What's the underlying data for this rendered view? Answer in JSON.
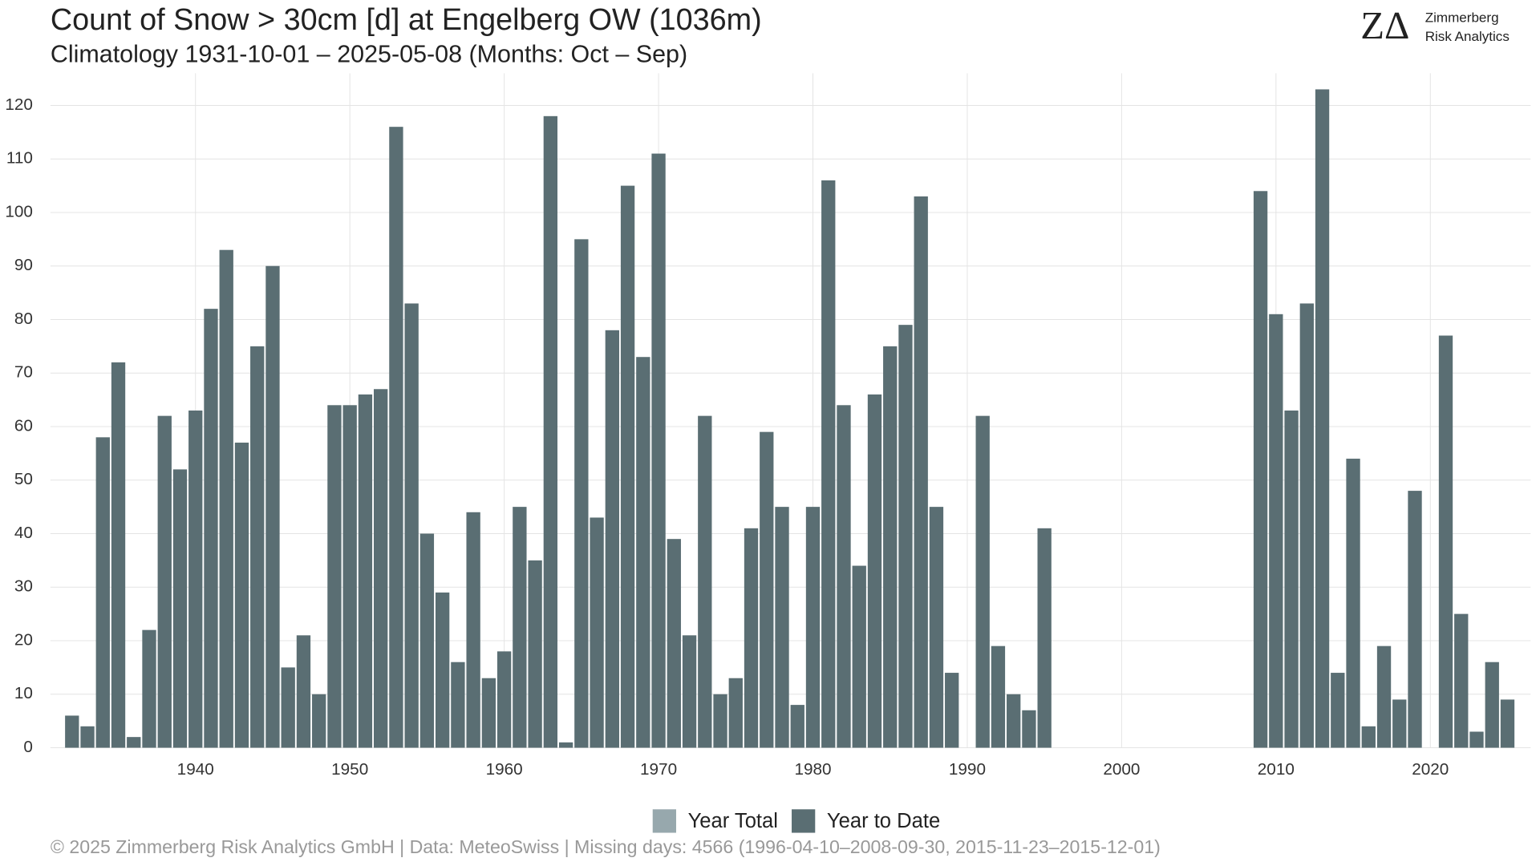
{
  "chart_data": {
    "type": "bar",
    "title": "Count of Snow > 30cm [d] at Engelberg  OW (1036m)",
    "subtitle": "Climatology 1931-10-01 – 2025-05-08 (Months: Oct – Sep)",
    "logo": {
      "mark": "ZΔ",
      "line1": "Zimmerberg",
      "line2": "Risk Analytics"
    },
    "caption": "©  2025 Zimmerberg Risk Analytics GmbH | Data: MeteoSwiss | Missing days: 4566 (1996-04-10–2008-09-30, 2015-11-23–2015-12-01)",
    "x": [
      1932,
      1933,
      1934,
      1935,
      1936,
      1937,
      1938,
      1939,
      1940,
      1941,
      1942,
      1943,
      1944,
      1945,
      1946,
      1947,
      1948,
      1949,
      1950,
      1951,
      1952,
      1953,
      1954,
      1955,
      1956,
      1957,
      1958,
      1959,
      1960,
      1961,
      1962,
      1963,
      1964,
      1965,
      1966,
      1967,
      1968,
      1969,
      1970,
      1971,
      1972,
      1973,
      1974,
      1975,
      1976,
      1977,
      1978,
      1979,
      1980,
      1981,
      1982,
      1983,
      1984,
      1985,
      1986,
      1987,
      1988,
      1989,
      1990,
      1991,
      1992,
      1993,
      1994,
      1995,
      1996,
      1997,
      1998,
      1999,
      2000,
      2001,
      2002,
      2003,
      2004,
      2005,
      2006,
      2007,
      2008,
      2009,
      2010,
      2011,
      2012,
      2013,
      2014,
      2015,
      2016,
      2017,
      2018,
      2019,
      2020,
      2021,
      2022,
      2023,
      2024,
      2025
    ],
    "series": [
      {
        "name": "Year Total",
        "color": "#97a8ad",
        "values": [
          null,
          null,
          null,
          null,
          null,
          null,
          null,
          null,
          null,
          null,
          null,
          null,
          null,
          null,
          null,
          null,
          null,
          null,
          null,
          null,
          null,
          null,
          null,
          null,
          null,
          null,
          null,
          null,
          null,
          null,
          null,
          null,
          null,
          null,
          null,
          null,
          null,
          null,
          null,
          null,
          null,
          null,
          null,
          null,
          null,
          null,
          null,
          null,
          null,
          null,
          null,
          null,
          null,
          null,
          null,
          null,
          null,
          null,
          null,
          null,
          null,
          null,
          null,
          null,
          null,
          null,
          null,
          null,
          null,
          null,
          null,
          null,
          null,
          null,
          null,
          null,
          null,
          null,
          null,
          null,
          null,
          null,
          null,
          null,
          null,
          null,
          null,
          null,
          null,
          null,
          null,
          null,
          null,
          null
        ]
      },
      {
        "name": "Year to Date",
        "color": "#5a6e73",
        "values": [
          6,
          4,
          58,
          72,
          2,
          22,
          62,
          52,
          63,
          82,
          93,
          57,
          75,
          90,
          15,
          21,
          10,
          64,
          64,
          66,
          67,
          116,
          83,
          40,
          29,
          16,
          44,
          13,
          18,
          45,
          35,
          118,
          1,
          95,
          43,
          78,
          105,
          73,
          111,
          39,
          21,
          62,
          10,
          13,
          41,
          59,
          45,
          8,
          45,
          106,
          64,
          34,
          66,
          75,
          79,
          103,
          45,
          14,
          null,
          62,
          19,
          10,
          7,
          41,
          null,
          null,
          null,
          null,
          null,
          null,
          null,
          null,
          null,
          null,
          null,
          null,
          null,
          104,
          81,
          63,
          83,
          123,
          14,
          54,
          4,
          19,
          9,
          48,
          null,
          77,
          25,
          3,
          16,
          9
        ]
      }
    ],
    "xlim": [
      1930.6,
      2026.5
    ],
    "xticks": [
      1940,
      1950,
      1960,
      1970,
      1980,
      1990,
      2000,
      2010,
      2020
    ],
    "ylim": [
      0,
      126
    ],
    "yticks": [
      0,
      10,
      20,
      30,
      40,
      50,
      60,
      70,
      80,
      90,
      100,
      110,
      120
    ],
    "grid": true
  }
}
